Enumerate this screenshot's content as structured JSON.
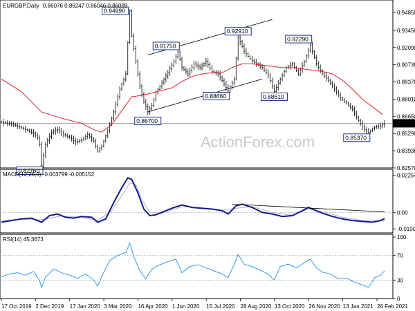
{
  "chart_data": [
    {
      "type": "line",
      "title": "EURGBP,Daily",
      "ohlc_readout": "0.86076 0.86247 0.86046 0.86099",
      "watermark": "ActionForex.com",
      "y_ticks": [
        "0.94850",
        "0.93450",
        "0.92090",
        "0.90730",
        "0.89370",
        "0.88010",
        "0.86650",
        "0.85290",
        "0.83930",
        "0.82570"
      ],
      "y_tick_values": [
        0.9485,
        0.9345,
        0.9209,
        0.9073,
        0.8937,
        0.8801,
        0.8665,
        0.8529,
        0.8393,
        0.8257
      ],
      "ylim": [
        0.8257,
        0.953
      ],
      "current_price": "0.86099",
      "current_price_value": 0.86099,
      "x_ticks": [
        "17 Oct 2019",
        "2 Dec 2019",
        "17 Jan 2020",
        "3 Mar 2020",
        "16 Apr 2020",
        "1 Jun 2020",
        "15 Jul 2020",
        "28 Aug 2020",
        "13 Oct 2020",
        "26 Nov 2020",
        "13 Jan 2021",
        "26 Feb 2021"
      ],
      "price_path": [
        [
          0,
          0.862
        ],
        [
          3,
          0.861
        ],
        [
          6,
          0.86
        ],
        [
          9,
          0.858
        ],
        [
          12,
          0.856
        ],
        [
          15,
          0.854
        ],
        [
          18,
          0.85
        ],
        [
          19,
          0.844
        ],
        [
          20,
          0.8276
        ],
        [
          22,
          0.844
        ],
        [
          25,
          0.854
        ],
        [
          28,
          0.856
        ],
        [
          31,
          0.852
        ],
        [
          34,
          0.85
        ],
        [
          37,
          0.846
        ],
        [
          40,
          0.848
        ],
        [
          43,
          0.852
        ],
        [
          46,
          0.847
        ],
        [
          48,
          0.839
        ],
        [
          50,
          0.843
        ],
        [
          53,
          0.855
        ],
        [
          56,
          0.87
        ],
        [
          59,
          0.888
        ],
        [
          62,
          0.9
        ],
        [
          64,
          0.9499
        ],
        [
          65,
          0.93
        ],
        [
          67,
          0.91
        ],
        [
          69,
          0.89
        ],
        [
          71,
          0.878
        ],
        [
          73,
          0.87
        ],
        [
          75,
          0.875
        ],
        [
          77,
          0.885
        ],
        [
          80,
          0.893
        ],
        [
          83,
          0.901
        ],
        [
          86,
          0.91
        ],
        [
          88,
          0.9175
        ],
        [
          90,
          0.905
        ],
        [
          93,
          0.9
        ],
        [
          96,
          0.908
        ],
        [
          99,
          0.905
        ],
        [
          102,
          0.91
        ],
        [
          105,
          0.902
        ],
        [
          108,
          0.9
        ],
        [
          111,
          0.892
        ],
        [
          113,
          0.8866
        ],
        [
          116,
          0.896
        ],
        [
          118,
          0.9291
        ],
        [
          121,
          0.918
        ],
        [
          124,
          0.912
        ],
        [
          127,
          0.908
        ],
        [
          130,
          0.905
        ],
        [
          133,
          0.899
        ],
        [
          136,
          0.8861
        ],
        [
          139,
          0.896
        ],
        [
          142,
          0.905
        ],
        [
          145,
          0.908
        ],
        [
          148,
          0.9
        ],
        [
          151,
          0.91
        ],
        [
          154,
          0.9229
        ],
        [
          157,
          0.908
        ],
        [
          160,
          0.9
        ],
        [
          163,
          0.895
        ],
        [
          166,
          0.888
        ],
        [
          169,
          0.881
        ],
        [
          172,
          0.877
        ],
        [
          175,
          0.872
        ],
        [
          178,
          0.863
        ],
        [
          181,
          0.856
        ],
        [
          183,
          0.8537
        ],
        [
          186,
          0.858
        ],
        [
          189,
          0.859
        ],
        [
          191,
          0.861
        ]
      ],
      "ma_path": [
        [
          0,
          0.896
        ],
        [
          10,
          0.886
        ],
        [
          20,
          0.87
        ],
        [
          30,
          0.865
        ],
        [
          40,
          0.861
        ],
        [
          46,
          0.856
        ],
        [
          50,
          0.854
        ],
        [
          55,
          0.86
        ],
        [
          60,
          0.871
        ],
        [
          65,
          0.882
        ],
        [
          70,
          0.883
        ],
        [
          75,
          0.885
        ],
        [
          80,
          0.887
        ],
        [
          85,
          0.889
        ],
        [
          90,
          0.894
        ],
        [
          95,
          0.898
        ],
        [
          100,
          0.9
        ],
        [
          105,
          0.901
        ],
        [
          110,
          0.901
        ],
        [
          115,
          0.905
        ],
        [
          120,
          0.908
        ],
        [
          125,
          0.908
        ],
        [
          130,
          0.907
        ],
        [
          135,
          0.906
        ],
        [
          140,
          0.905
        ],
        [
          145,
          0.905
        ],
        [
          150,
          0.904
        ],
        [
          155,
          0.903
        ],
        [
          160,
          0.902
        ],
        [
          165,
          0.9
        ],
        [
          170,
          0.895
        ],
        [
          175,
          0.888
        ],
        [
          180,
          0.88
        ],
        [
          185,
          0.874
        ],
        [
          190,
          0.868
        ]
      ],
      "trend_lines": [
        [
          [
            73,
            0.87
          ],
          [
            130,
            0.896
          ]
        ],
        [
          [
            73,
            0.915
          ],
          [
            135,
            0.943
          ]
        ]
      ],
      "annotations": [
        {
          "label": "0.82760",
          "x": 20,
          "y": 0.8276,
          "pos": "below-left"
        },
        {
          "label": "0.94990",
          "x": 64,
          "y": 0.9499,
          "pos": "left"
        },
        {
          "label": "0.86700",
          "x": 73,
          "y": 0.867,
          "pos": "below"
        },
        {
          "label": "0.91750",
          "x": 88,
          "y": 0.9175,
          "pos": "above-left"
        },
        {
          "label": "0.88660",
          "x": 113,
          "y": 0.8866,
          "pos": "below-left"
        },
        {
          "label": "0.92910",
          "x": 118,
          "y": 0.9291,
          "pos": "above"
        },
        {
          "label": "0.88610",
          "x": 136,
          "y": 0.8861,
          "pos": "below"
        },
        {
          "label": "0.92290",
          "x": 154,
          "y": 0.9229,
          "pos": "above-left"
        },
        {
          "label": "0.85370",
          "x": 183,
          "y": 0.8537,
          "pos": "below-left"
        }
      ]
    },
    {
      "type": "line",
      "title": "MACD(12,26,9) -0.003799 -0.005152",
      "y_ticks": [
        "0.022544",
        "0.00",
        "-0.010039"
      ],
      "y_tick_values": [
        0.022544,
        0.0,
        -0.010039
      ],
      "ylim": [
        -0.0125,
        0.0245
      ],
      "macd_path": [
        [
          0,
          -0.006
        ],
        [
          5,
          -0.005
        ],
        [
          10,
          -0.004
        ],
        [
          15,
          -0.0035
        ],
        [
          20,
          -0.006
        ],
        [
          24,
          -0.002
        ],
        [
          28,
          -0.001
        ],
        [
          32,
          -0.003
        ],
        [
          36,
          -0.0035
        ],
        [
          40,
          -0.0025
        ],
        [
          45,
          -0.003
        ],
        [
          48,
          -0.006
        ],
        [
          52,
          -0.004
        ],
        [
          56,
          0.006
        ],
        [
          60,
          0.015
        ],
        [
          63,
          0.021
        ],
        [
          65,
          0.02
        ],
        [
          68,
          0.012
        ],
        [
          71,
          0.002
        ],
        [
          74,
          -0.002
        ],
        [
          77,
          -0.0015
        ],
        [
          80,
          0.0
        ],
        [
          85,
          0.0025
        ],
        [
          90,
          0.0045
        ],
        [
          95,
          0.003
        ],
        [
          100,
          0.0025
        ],
        [
          105,
          0.002
        ],
        [
          110,
          0.001
        ],
        [
          113,
          -0.001
        ],
        [
          117,
          0.004
        ],
        [
          120,
          0.005
        ],
        [
          125,
          0.003
        ],
        [
          130,
          0.0
        ],
        [
          135,
          -0.001
        ],
        [
          140,
          -0.0025
        ],
        [
          145,
          -0.002
        ],
        [
          150,
          0.001
        ],
        [
          153,
          0.003
        ],
        [
          156,
          0.0015
        ],
        [
          160,
          -0.0005
        ],
        [
          165,
          -0.0025
        ],
        [
          170,
          -0.004
        ],
        [
          175,
          -0.005
        ],
        [
          180,
          -0.0055
        ],
        [
          185,
          -0.006
        ],
        [
          189,
          -0.005
        ],
        [
          191,
          -0.0038
        ]
      ],
      "signal_path": [
        [
          0,
          -0.005
        ],
        [
          10,
          -0.0042
        ],
        [
          20,
          -0.0045
        ],
        [
          30,
          -0.0022
        ],
        [
          40,
          -0.003
        ],
        [
          48,
          -0.005
        ],
        [
          55,
          0.001
        ],
        [
          60,
          0.01
        ],
        [
          64,
          0.018
        ],
        [
          67,
          0.017
        ],
        [
          70,
          0.008
        ],
        [
          74,
          0.0
        ],
        [
          80,
          -0.0005
        ],
        [
          90,
          0.0035
        ],
        [
          100,
          0.0028
        ],
        [
          110,
          0.0012
        ],
        [
          117,
          0.0025
        ],
        [
          125,
          0.0035
        ],
        [
          135,
          0.0
        ],
        [
          145,
          -0.0018
        ],
        [
          153,
          0.002
        ],
        [
          160,
          0.0005
        ],
        [
          170,
          -0.003
        ],
        [
          180,
          -0.005
        ],
        [
          191,
          -0.0052
        ]
      ],
      "trend_line": [
        [
          115,
          0.005
        ],
        [
          191,
          0.0003
        ]
      ]
    },
    {
      "type": "line",
      "title": "RSI(14) 45.3673",
      "y_ticks": [
        "100",
        "70",
        "30",
        "0"
      ],
      "y_tick_values": [
        100,
        70,
        30,
        0
      ],
      "ylim": [
        0,
        100
      ],
      "rsi_path": [
        [
          0,
          35
        ],
        [
          4,
          40
        ],
        [
          8,
          42
        ],
        [
          12,
          38
        ],
        [
          16,
          44
        ],
        [
          19,
          30
        ],
        [
          20,
          18
        ],
        [
          22,
          35
        ],
        [
          26,
          48
        ],
        [
          30,
          42
        ],
        [
          34,
          38
        ],
        [
          38,
          33
        ],
        [
          42,
          40
        ],
        [
          46,
          30
        ],
        [
          48,
          20
        ],
        [
          50,
          36
        ],
        [
          54,
          62
        ],
        [
          58,
          70
        ],
        [
          62,
          75
        ],
        [
          64,
          90
        ],
        [
          66,
          68
        ],
        [
          69,
          45
        ],
        [
          72,
          32
        ],
        [
          75,
          48
        ],
        [
          79,
          55
        ],
        [
          83,
          60
        ],
        [
          87,
          64
        ],
        [
          90,
          42
        ],
        [
          94,
          52
        ],
        [
          98,
          55
        ],
        [
          102,
          50
        ],
        [
          106,
          45
        ],
        [
          110,
          40
        ],
        [
          113,
          34
        ],
        [
          116,
          55
        ],
        [
          118,
          72
        ],
        [
          121,
          56
        ],
        [
          125,
          52
        ],
        [
          129,
          46
        ],
        [
          133,
          40
        ],
        [
          136,
          30
        ],
        [
          139,
          52
        ],
        [
          143,
          56
        ],
        [
          147,
          50
        ],
        [
          151,
          58
        ],
        [
          154,
          64
        ],
        [
          157,
          50
        ],
        [
          160,
          43
        ],
        [
          164,
          40
        ],
        [
          168,
          32
        ],
        [
          172,
          33
        ],
        [
          176,
          27
        ],
        [
          180,
          22
        ],
        [
          183,
          18
        ],
        [
          186,
          34
        ],
        [
          189,
          38
        ],
        [
          191,
          45
        ]
      ]
    }
  ]
}
